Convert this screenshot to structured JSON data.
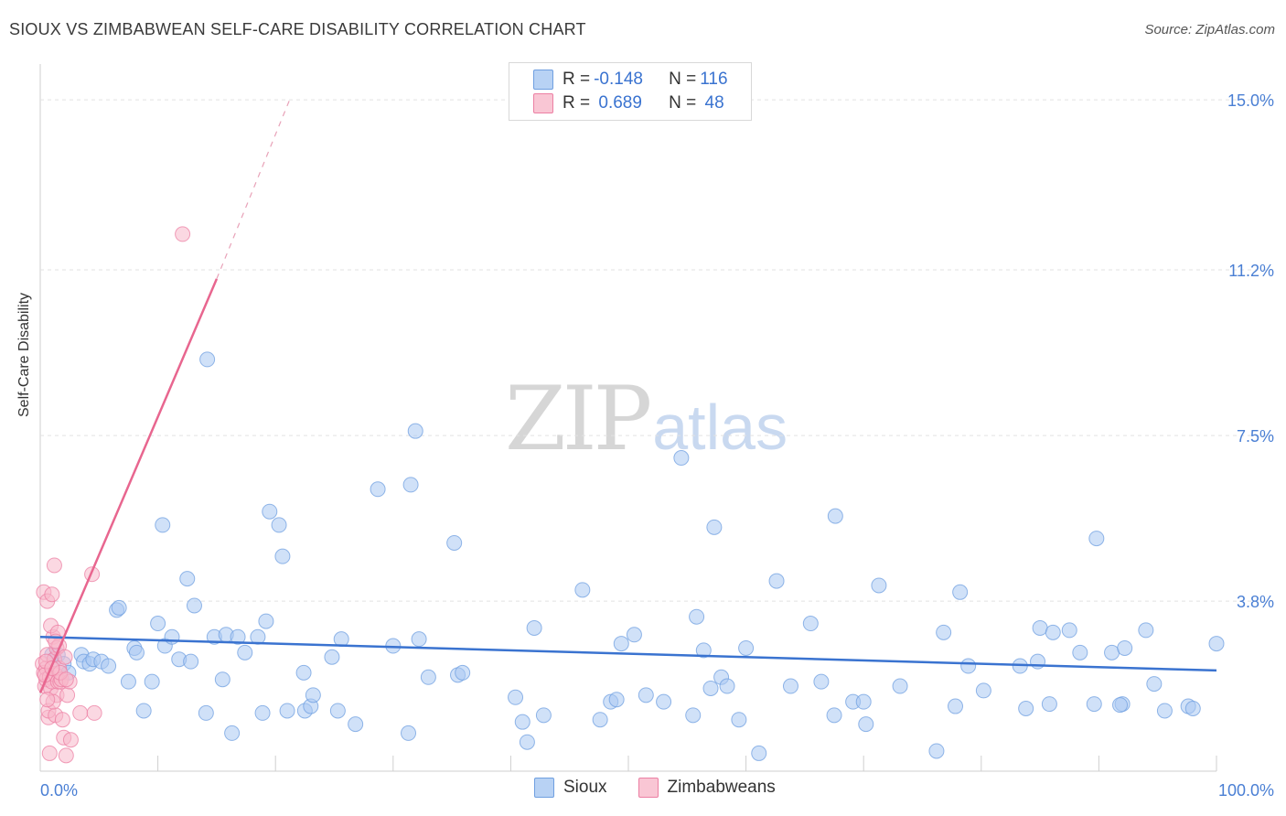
{
  "title": "SIOUX VS ZIMBABWEAN SELF-CARE DISABILITY CORRELATION CHART",
  "source": "Source: ZipAtlas.com",
  "watermark": {
    "zip": "ZIP",
    "atlas": "atlas"
  },
  "legend": {
    "rows": [
      {
        "r_label": "R = ",
        "r_value": "-0.148",
        "n_label": "N = ",
        "n_value": "116",
        "color": "#a9c8f2"
      },
      {
        "r_label": "R = ",
        "r_value": " 0.689",
        "n_label": "N = ",
        "n_value": " 48",
        "color": "#f7b8ca"
      }
    ]
  },
  "bottom_legend": [
    {
      "label": "Sioux",
      "color": "#a9c8f2"
    },
    {
      "label": "Zimbabweans",
      "color": "#f7b8ca"
    }
  ],
  "chart_data": {
    "type": "scatter",
    "title": "SIOUX VS ZIMBABWEAN SELF-CARE DISABILITY CORRELATION CHART",
    "xlabel": "",
    "ylabel": "Self-Care Disability",
    "xlim": [
      0,
      100
    ],
    "ylim": [
      0,
      15.8
    ],
    "y_ticks": [
      {
        "value": 3.8,
        "label": "3.8%"
      },
      {
        "value": 7.5,
        "label": "7.5%"
      },
      {
        "value": 11.2,
        "label": "11.2%"
      },
      {
        "value": 15.0,
        "label": "15.0%"
      }
    ],
    "x_tick_labels": [
      {
        "value": 0,
        "label": "0.0%"
      },
      {
        "value": 100,
        "label": "100.0%"
      }
    ],
    "x_minor_ticks": [
      10,
      20,
      30,
      40,
      50,
      60,
      70,
      80,
      90,
      100
    ],
    "series": [
      {
        "name": "Sioux",
        "color": "#6f9fe0",
        "fill": "#a9c8f2",
        "trend": {
          "x0": 0,
          "y0": 3.0,
          "x1": 100,
          "y1": 2.25,
          "dashed_to": null
        },
        "points": [
          [
            1.0,
            2.6
          ],
          [
            1.2,
            2.5
          ],
          [
            1.5,
            2.6
          ],
          [
            2.0,
            2.4
          ],
          [
            2.4,
            2.2
          ],
          [
            3.5,
            2.6
          ],
          [
            3.7,
            2.45
          ],
          [
            4.2,
            2.4
          ],
          [
            4.5,
            2.5
          ],
          [
            5.2,
            2.45
          ],
          [
            5.8,
            2.35
          ],
          [
            6.5,
            3.6
          ],
          [
            6.7,
            3.65
          ],
          [
            7.5,
            2.0
          ],
          [
            8.0,
            2.75
          ],
          [
            8.2,
            2.65
          ],
          [
            8.8,
            1.35
          ],
          [
            9.5,
            2.0
          ],
          [
            10.0,
            3.3
          ],
          [
            10.4,
            5.5
          ],
          [
            10.6,
            2.8
          ],
          [
            11.2,
            3.0
          ],
          [
            11.8,
            2.5
          ],
          [
            12.5,
            4.3
          ],
          [
            12.8,
            2.45
          ],
          [
            13.1,
            3.7
          ],
          [
            14.1,
            1.3
          ],
          [
            14.2,
            9.2
          ],
          [
            14.8,
            3.0
          ],
          [
            15.5,
            2.05
          ],
          [
            15.8,
            3.05
          ],
          [
            16.3,
            0.85
          ],
          [
            16.8,
            3.0
          ],
          [
            17.4,
            2.65
          ],
          [
            18.5,
            3.0
          ],
          [
            18.9,
            1.3
          ],
          [
            19.2,
            3.35
          ],
          [
            19.5,
            5.8
          ],
          [
            20.3,
            5.5
          ],
          [
            20.6,
            4.8
          ],
          [
            21.0,
            1.35
          ],
          [
            22.4,
            2.2
          ],
          [
            22.5,
            1.35
          ],
          [
            23.0,
            1.45
          ],
          [
            23.2,
            1.7
          ],
          [
            24.8,
            2.55
          ],
          [
            25.3,
            1.35
          ],
          [
            25.6,
            2.95
          ],
          [
            26.8,
            1.05
          ],
          [
            28.7,
            6.3
          ],
          [
            30.0,
            2.8
          ],
          [
            31.3,
            0.85
          ],
          [
            31.5,
            6.4
          ],
          [
            31.9,
            7.6
          ],
          [
            32.2,
            2.95
          ],
          [
            33.0,
            2.1
          ],
          [
            35.2,
            5.1
          ],
          [
            35.5,
            2.15
          ],
          [
            35.9,
            2.2
          ],
          [
            40.4,
            1.65
          ],
          [
            41.0,
            1.1
          ],
          [
            41.4,
            0.65
          ],
          [
            42.0,
            3.2
          ],
          [
            42.8,
            1.25
          ],
          [
            46.1,
            4.05
          ],
          [
            47.6,
            1.15
          ],
          [
            48.5,
            1.55
          ],
          [
            49.4,
            2.85
          ],
          [
            50.5,
            3.05
          ],
          [
            51.5,
            1.7
          ],
          [
            53.0,
            1.55
          ],
          [
            54.5,
            7.0
          ],
          [
            55.5,
            1.25
          ],
          [
            55.8,
            3.45
          ],
          [
            56.4,
            2.7
          ],
          [
            57.0,
            1.85
          ],
          [
            57.3,
            5.45
          ],
          [
            57.9,
            2.1
          ],
          [
            59.4,
            1.15
          ],
          [
            60.0,
            2.75
          ],
          [
            61.1,
            0.4
          ],
          [
            62.6,
            4.25
          ],
          [
            63.8,
            1.9
          ],
          [
            65.5,
            3.3
          ],
          [
            66.4,
            2.0
          ],
          [
            67.5,
            1.25
          ],
          [
            67.6,
            5.7
          ],
          [
            69.1,
            1.55
          ],
          [
            70.0,
            1.55
          ],
          [
            70.2,
            1.05
          ],
          [
            71.3,
            4.15
          ],
          [
            73.1,
            1.9
          ],
          [
            76.2,
            0.45
          ],
          [
            76.8,
            3.1
          ],
          [
            77.8,
            1.45
          ],
          [
            78.2,
            4.0
          ],
          [
            78.9,
            2.35
          ],
          [
            80.2,
            1.8
          ],
          [
            83.3,
            2.35
          ],
          [
            83.8,
            1.4
          ],
          [
            84.8,
            2.45
          ],
          [
            85.0,
            3.2
          ],
          [
            85.8,
            1.5
          ],
          [
            86.1,
            3.1
          ],
          [
            87.5,
            3.15
          ],
          [
            88.4,
            2.65
          ],
          [
            89.6,
            1.5
          ],
          [
            89.8,
            5.2
          ],
          [
            91.1,
            2.65
          ],
          [
            92.0,
            1.5
          ],
          [
            92.2,
            2.75
          ],
          [
            94.0,
            3.15
          ],
          [
            94.7,
            1.95
          ],
          [
            95.6,
            1.35
          ],
          [
            97.6,
            1.45
          ],
          [
            98.0,
            1.4
          ],
          [
            100.0,
            2.85
          ],
          [
            91.8,
            1.48
          ],
          [
            58.4,
            1.9
          ],
          [
            49.0,
            1.6
          ]
        ]
      },
      {
        "name": "Zimbabweans",
        "color": "#ec7fa3",
        "fill": "#f7b8ca",
        "trend": {
          "x0": 0,
          "y0": 1.75,
          "x1": 15.0,
          "y1": 11.0,
          "dashed_to": {
            "x": 21.2,
            "y": 15.0
          }
        },
        "points": [
          [
            0.2,
            2.4
          ],
          [
            0.3,
            2.2
          ],
          [
            0.4,
            1.9
          ],
          [
            0.5,
            2.3
          ],
          [
            0.5,
            2.05
          ],
          [
            0.6,
            2.6
          ],
          [
            0.7,
            1.2
          ],
          [
            0.8,
            2.1
          ],
          [
            0.9,
            1.85
          ],
          [
            1.0,
            2.0
          ],
          [
            1.1,
            3.0
          ],
          [
            1.2,
            2.5
          ],
          [
            1.3,
            2.15
          ],
          [
            1.4,
            1.7
          ],
          [
            1.5,
            2.0
          ],
          [
            1.6,
            2.3
          ],
          [
            0.3,
            4.0
          ],
          [
            0.6,
            3.8
          ],
          [
            0.7,
            1.35
          ],
          [
            0.9,
            3.25
          ],
          [
            1.2,
            4.6
          ],
          [
            1.3,
            1.25
          ],
          [
            1.4,
            2.75
          ],
          [
            1.5,
            3.1
          ],
          [
            1.6,
            2.8
          ],
          [
            1.7,
            2.0
          ],
          [
            1.8,
            2.05
          ],
          [
            1.9,
            1.15
          ],
          [
            2.0,
            0.75
          ],
          [
            2.2,
            0.35
          ],
          [
            2.3,
            1.7
          ],
          [
            2.5,
            2.0
          ],
          [
            2.6,
            0.7
          ],
          [
            0.4,
            2.15
          ],
          [
            0.5,
            2.45
          ],
          [
            0.8,
            0.4
          ],
          [
            1.0,
            3.95
          ],
          [
            1.1,
            1.55
          ],
          [
            1.3,
            2.9
          ],
          [
            1.7,
            2.2
          ],
          [
            2.1,
            2.55
          ],
          [
            2.2,
            2.05
          ],
          [
            3.4,
            1.3
          ],
          [
            4.4,
            4.4
          ],
          [
            4.6,
            1.3
          ],
          [
            12.1,
            12.0
          ],
          [
            0.6,
            1.6
          ],
          [
            1.0,
            2.3
          ]
        ]
      }
    ]
  }
}
